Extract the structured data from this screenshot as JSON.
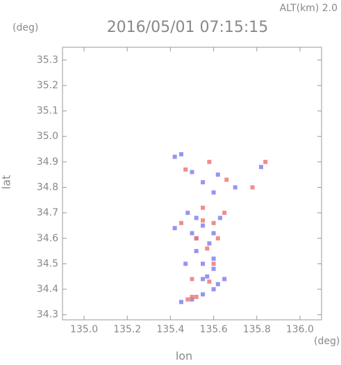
{
  "chart_data": {
    "type": "scatter",
    "title": "2016/05/01 07:15:15",
    "annotation": "ALT(km) 2.0",
    "x_label": "lon",
    "y_label": "lat",
    "x_unit": "(deg)",
    "y_unit": "(deg)",
    "xlim": [
      134.9,
      136.1
    ],
    "ylim": [
      34.28,
      35.35
    ],
    "xticks": [
      {
        "value": 135.0,
        "label": "135.0"
      },
      135.2,
      135.4,
      135.6,
      135.8,
      {
        "value": 136.0,
        "label": "136.0"
      }
    ],
    "yticks": [
      34.3,
      34.4,
      34.5,
      34.6,
      34.7,
      34.8,
      34.9,
      {
        "value": 35.0,
        "label": "35.0"
      },
      35.1,
      35.2,
      35.3
    ],
    "series": [
      {
        "color": "#7a7aee",
        "x": [
          135.42,
          135.45,
          135.5,
          135.55,
          135.62,
          135.7,
          135.6,
          135.52,
          135.55,
          135.48,
          135.6,
          135.58,
          135.52,
          135.55,
          135.6,
          135.57,
          135.62,
          135.6,
          135.65,
          135.55,
          135.5,
          135.45,
          135.52,
          135.42,
          135.47,
          135.82,
          135.55,
          135.6,
          135.63,
          135.5
        ],
        "y": [
          34.92,
          34.93,
          34.86,
          34.82,
          34.85,
          34.8,
          34.78,
          34.68,
          34.65,
          34.7,
          34.62,
          34.58,
          34.55,
          34.5,
          34.48,
          34.45,
          34.42,
          34.4,
          34.44,
          34.38,
          34.36,
          34.35,
          34.6,
          34.64,
          34.5,
          34.88,
          34.44,
          34.52,
          34.68,
          34.62
        ]
      },
      {
        "color": "#ee7070",
        "x": [
          135.47,
          135.58,
          135.84,
          135.78,
          135.55,
          135.6,
          135.52,
          135.57,
          135.62,
          135.5,
          135.52,
          135.48,
          135.6,
          135.55,
          135.65,
          135.45,
          135.58,
          135.66,
          135.5
        ],
        "y": [
          34.87,
          34.9,
          34.9,
          34.8,
          34.67,
          34.66,
          34.6,
          34.56,
          34.6,
          34.37,
          34.37,
          34.36,
          34.5,
          34.72,
          34.7,
          34.66,
          34.43,
          34.83,
          34.44
        ]
      }
    ]
  }
}
